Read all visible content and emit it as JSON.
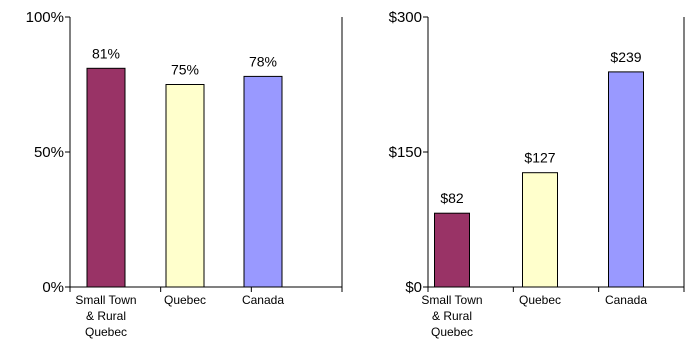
{
  "chart_data": [
    {
      "type": "bar",
      "categories": [
        [
          "Small Town",
          "& Rural",
          "Quebec"
        ],
        [
          "Quebec"
        ],
        [
          "Canada"
        ]
      ],
      "values": [
        81,
        75,
        78
      ],
      "data_labels": [
        "81%",
        "75%",
        "78%"
      ],
      "colors": [
        "#993366",
        "#FFFFCC",
        "#9999FF"
      ],
      "ylim": [
        0,
        100
      ],
      "yticks": [
        0,
        50,
        100
      ],
      "ytick_labels": [
        "0%",
        "50%",
        "100%"
      ],
      "grid": false
    },
    {
      "type": "bar",
      "categories": [
        [
          "Small Town",
          "& Rural",
          "Quebec"
        ],
        [
          "Quebec"
        ],
        [
          "Canada"
        ]
      ],
      "values": [
        82,
        127,
        239
      ],
      "data_labels": [
        "$82",
        "$127",
        "$239"
      ],
      "colors": [
        "#993366",
        "#FFFFCC",
        "#9999FF"
      ],
      "ylim": [
        0,
        300
      ],
      "yticks": [
        0,
        150,
        300
      ],
      "ytick_labels": [
        "$0",
        "$150",
        "$300"
      ],
      "grid": false
    }
  ]
}
